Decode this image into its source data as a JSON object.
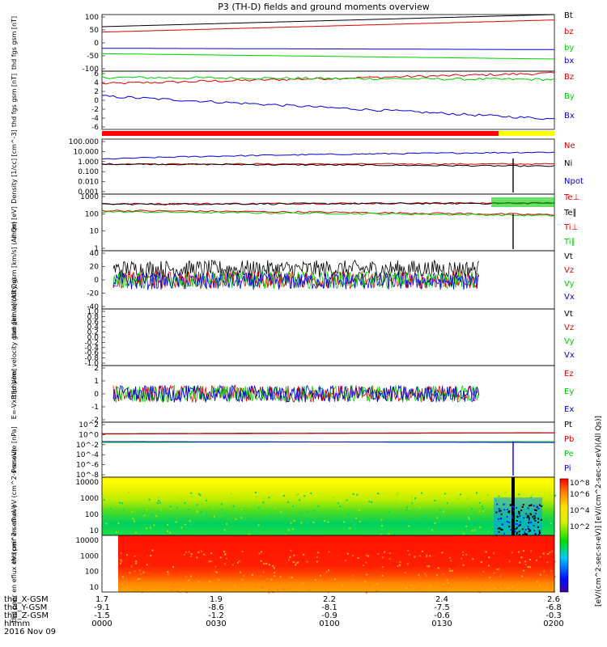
{
  "title": "P3 (TH-D) fields and ground moments overview",
  "footer": {
    "row_labels": [
      "thd_X-GSM",
      "thd_Y-GSM",
      "thd_Z-GSM",
      "hhmm",
      "2016 Nov 09"
    ],
    "ticks": [
      {
        "x": [
          "1.7",
          "-9.1",
          "-1.5"
        ],
        "hhmm": "0000"
      },
      {
        "x": [
          "1.9",
          "-8.6",
          "-1.2"
        ],
        "hhmm": "0030"
      },
      {
        "x": [
          "2.2",
          "-8.1",
          "-0.9"
        ],
        "hhmm": "0100"
      },
      {
        "x": [
          "2.4",
          "-7.5",
          "-0.6"
        ],
        "hhmm": "0130"
      },
      {
        "x": [
          "2.6",
          "-6.8",
          "-0.3"
        ],
        "hhmm": "0200"
      }
    ]
  },
  "colors": {
    "black": "#000000",
    "red": "#e00000",
    "green": "#00cc00",
    "blue": "#0000dd"
  },
  "colorbar": {
    "ticks": [
      "10^8",
      "10^6",
      "10^4",
      "10^2"
    ],
    "label": "[eV/(cm^2-sec-sr-eV)] [eV/(cm^2-sec-sr-eV)(All Qs)]"
  },
  "chart_data": [
    {
      "type": "line",
      "ylabel": "thd fgs gsm [nT]",
      "ylim": [
        -100,
        110
      ],
      "yticks": [
        "100",
        "50",
        "0",
        "-50",
        "-100"
      ],
      "legend": [
        "Bt",
        "bz",
        "by",
        "bx"
      ],
      "series": [
        {
          "name": "Bt",
          "values": [
            65,
            110
          ]
        },
        {
          "name": "bz",
          "values": [
            45,
            90
          ]
        },
        {
          "name": "by",
          "values": [
            -35,
            -55
          ]
        },
        {
          "name": "bx",
          "values": [
            -15,
            -20
          ]
        }
      ]
    },
    {
      "type": "line",
      "ylabel": "thd fgs gsm [nT]",
      "ylim": [
        -7,
        7
      ],
      "yticks": [
        "6",
        "4",
        "2",
        "0",
        "-2",
        "-4",
        "-6"
      ],
      "legend": [
        "Bz",
        "By",
        "Bx"
      ],
      "series": [
        {
          "name": "Bz",
          "values": [
            4,
            6.5
          ]
        },
        {
          "name": "By",
          "values": [
            5.5,
            5
          ]
        },
        {
          "name": "Bx",
          "values": [
            1,
            -4.5
          ]
        }
      ]
    },
    {
      "type": "line",
      "ylabel": "Density [1/cc] [cm^-3]",
      "ylim": [
        "0.001",
        "300"
      ],
      "yscale": "log",
      "yticks": [
        "100.000",
        "10.000",
        "1.000",
        "0.100",
        "0.010",
        "0.001"
      ],
      "legend": [
        "Ne",
        "Ni",
        "Npot"
      ],
      "series": [
        {
          "name": "Ne",
          "values": [
            1,
            1
          ]
        },
        {
          "name": "Ni",
          "values": [
            1,
            0.6
          ]
        },
        {
          "name": "Npot",
          "values": [
            3,
            15
          ]
        }
      ]
    },
    {
      "type": "line",
      "ylabel": "mom [eV]",
      "ylim": [
        "1",
        "30000"
      ],
      "yscale": "log",
      "yticks": [
        "1000",
        "100",
        "10",
        "1"
      ],
      "legend": [
        "Te⊥",
        "Te∥",
        "Ti⊥",
        "Ti∥"
      ],
      "series": [
        {
          "name": "Te⊥",
          "values": [
            5000,
            6000
          ]
        },
        {
          "name": "Te∥",
          "values": [
            4800,
            5800
          ]
        },
        {
          "name": "Ti⊥",
          "values": [
            1500,
            700
          ]
        },
        {
          "name": "Ti∥",
          "values": [
            1200,
            600
          ]
        }
      ]
    },
    {
      "type": "line",
      "ylabel": "thd peir velocity gsm [km/s] (All Qs)",
      "ylim": [
        -40,
        40
      ],
      "yticks": [
        "40",
        "20",
        "0",
        "-20",
        "-40"
      ],
      "legend": [
        "Vt",
        "Vz",
        "Vy",
        "Vx"
      ],
      "series": [
        {
          "name": "Vt",
          "values": [
            15,
            15
          ]
        },
        {
          "name": "Vz",
          "values": [
            0,
            0
          ]
        },
        {
          "name": "Vy",
          "values": [
            0,
            0
          ]
        },
        {
          "name": "Vx",
          "values": [
            -2,
            -2
          ]
        }
      ]
    },
    {
      "type": "line",
      "ylabel": "thd peer velocity gsm [km/s] (All Qs)",
      "ylim": [
        -1,
        1
      ],
      "yticks": [
        "1.0",
        "0.8",
        "0.6",
        "0.4",
        "0.2",
        "0.0",
        "-0.2",
        "-0.4",
        "-0.6",
        "-0.8",
        "-1.0"
      ],
      "legend": [
        "Vt",
        "Vz",
        "Vy",
        "Vx"
      ],
      "series": []
    },
    {
      "type": "line",
      "ylabel": "E=-VxB [mV/m]",
      "ylim": [
        -3,
        3
      ],
      "yticks": [
        "2",
        "1",
        "0",
        "-1",
        "-2"
      ],
      "legend": [
        "Ez",
        "Ey",
        "Ex"
      ],
      "series": [
        {
          "name": "Ez",
          "values": [
            0,
            0
          ]
        },
        {
          "name": "Ey",
          "values": [
            0,
            0
          ]
        },
        {
          "name": "Ex",
          "values": [
            0,
            0
          ]
        }
      ]
    },
    {
      "type": "line",
      "ylabel": "Pressure [nPa]",
      "ylim": [
        "1e-8",
        "100"
      ],
      "yscale": "log",
      "yticks": [
        "10^2",
        "10^0",
        "10^-2",
        "10^-4",
        "10^-6",
        "10^-8"
      ],
      "legend": [
        "Pt",
        "Pb",
        "Pe",
        "Pi"
      ],
      "series": [
        {
          "name": "Pt",
          "values": [
            0.8,
            1.2
          ]
        },
        {
          "name": "Pb",
          "values": [
            0.7,
            1.1
          ]
        },
        {
          "name": "Pe",
          "values": [
            0.02,
            0.03
          ]
        },
        {
          "name": "Pi",
          "values": [
            0.03,
            0.02
          ]
        }
      ]
    },
    {
      "type": "heatmap",
      "ylabel": "thd peir en eflux eV (cm^2-s-sr-eV)",
      "yscale": "log",
      "yticks": [
        "10000",
        "1000",
        "100",
        "10"
      ]
    },
    {
      "type": "heatmap",
      "ylabel": "thd peer en eflux eV (cm^2-s-sr-eV)",
      "yscale": "log",
      "yticks": [
        "10000",
        "1000",
        "100",
        "10"
      ]
    }
  ]
}
